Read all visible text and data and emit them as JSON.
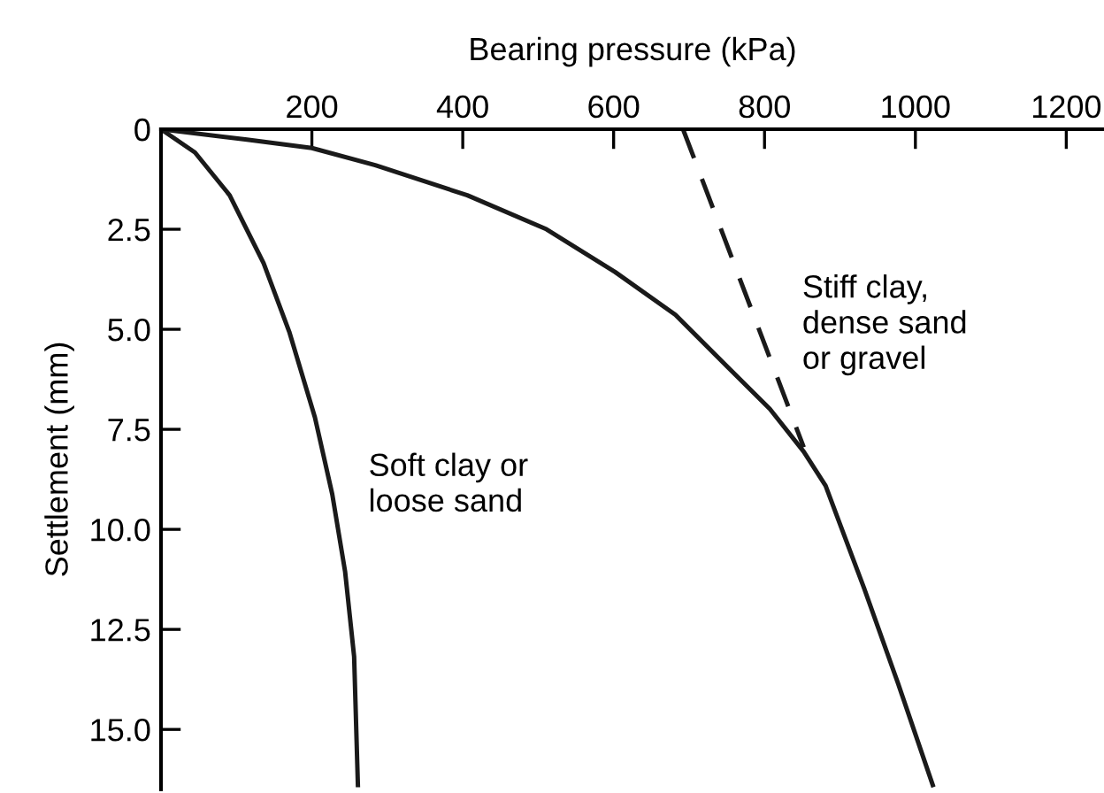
{
  "chart_data": {
    "type": "line",
    "xlabel": "Bearing pressure (kPa)",
    "ylabel": "Settlement (mm)",
    "series": [
      {
        "color": "#1a1a1a",
        "line_style": "solid",
        "x": [
          0,
          45,
          91,
          136,
          170,
          204,
          227,
          244,
          256,
          261
        ],
        "values": [
          0,
          0.58,
          1.65,
          3.35,
          5.06,
          7.2,
          9.12,
          11.05,
          13.18,
          16.39
        ]
      },
      {
        "color": "#1a1a1a",
        "line_style": "solid",
        "x": [
          0,
          114,
          200,
          284,
          406,
          511,
          602,
          682,
          750,
          807,
          852,
          881,
          898,
          932,
          977,
          1023
        ],
        "values": [
          0,
          0.26,
          0.47,
          0.9,
          1.65,
          2.5,
          3.57,
          4.64,
          5.92,
          6.99,
          8.06,
          8.91,
          9.77,
          11.47,
          13.85,
          16.39
        ]
      },
      {
        "color": "#1a1a1a",
        "line_style": "dashed",
        "x": [
          692,
          852
        ],
        "values": [
          0,
          7.95
        ]
      }
    ],
    "xlim": [
      0,
      1250
    ],
    "ylim": [
      16.5,
      0
    ],
    "xticks": [
      200,
      400,
      600,
      800,
      1000,
      1200
    ],
    "yticks": [
      {
        "value": 0,
        "label": "0"
      },
      2.5,
      {
        "value": 5,
        "label": "5.0"
      },
      7.5,
      {
        "value": 10,
        "label": "10.0"
      },
      12.5,
      {
        "value": 15,
        "label": "15.0"
      }
    ],
    "annotations": [
      "Soft clay or\nloose sand",
      "Stiff clay,\ndense sand\nor gravel"
    ],
    "grid": false,
    "legend": false,
    "marker": "none"
  }
}
